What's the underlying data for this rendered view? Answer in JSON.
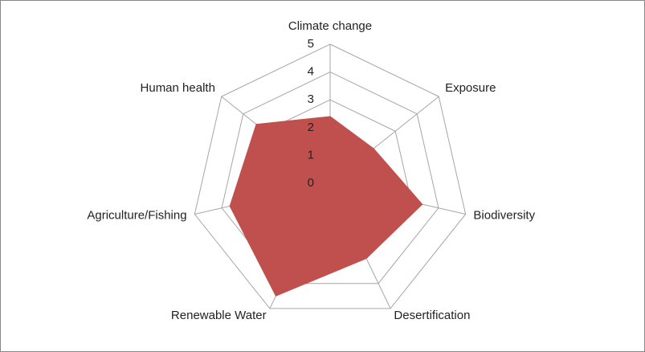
{
  "chart_data": {
    "type": "radar",
    "categories": [
      "Climate change",
      "Exposure",
      "Biodiversity",
      "Desertification",
      "Renewable Water",
      "Agriculture/Fishing",
      "Human health"
    ],
    "values": [
      2.4,
      2.0,
      3.4,
      3.0,
      4.5,
      3.7,
      3.4
    ],
    "color": "#c0504d",
    "rlim": [
      0,
      5
    ],
    "rticks": [
      0,
      1,
      2,
      3,
      4,
      5
    ],
    "grid": true
  }
}
